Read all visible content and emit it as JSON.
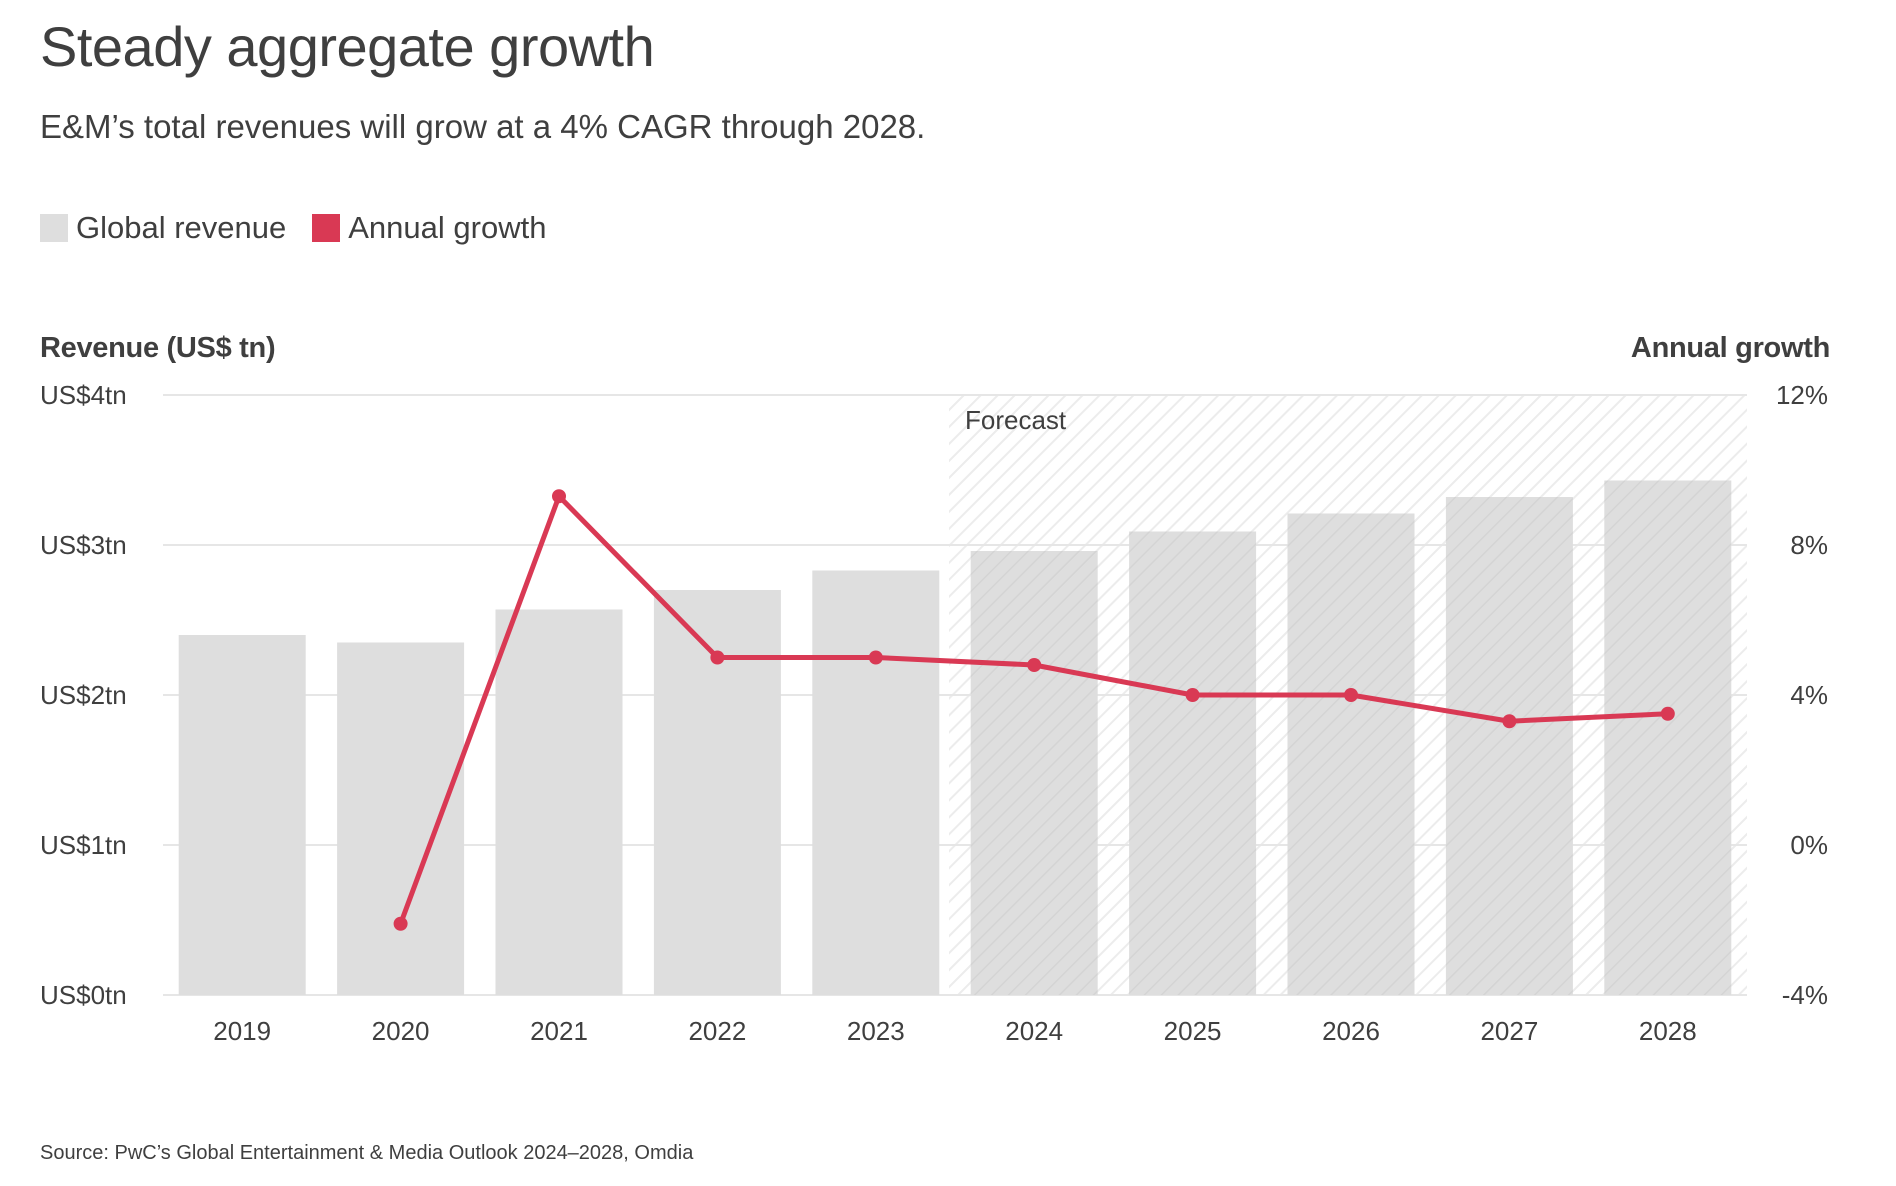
{
  "title": "Steady aggregate growth",
  "subtitle": "E&M’s total revenues will grow at a 4% CAGR through 2028.",
  "legend": {
    "revenue_label": "Global revenue",
    "growth_label": "Annual growth"
  },
  "axis": {
    "left_title": "Revenue (US$ tn)",
    "right_title": "Annual growth"
  },
  "forecast_label": "Forecast",
  "source": "Source: PwC’s Global Entertainment & Media Outlook 2024–2028, Omdia",
  "colors": {
    "bar": "#dedede",
    "line": "#d93954",
    "grid": "#e6e6e6",
    "text": "#3f3f3f"
  },
  "chart_data": {
    "type": "bar",
    "categories": [
      "2019",
      "2020",
      "2021",
      "2022",
      "2023",
      "2024",
      "2025",
      "2026",
      "2027",
      "2028"
    ],
    "series": [
      {
        "name": "Global revenue",
        "type": "bar",
        "axis": "left",
        "values": [
          2.4,
          2.35,
          2.57,
          2.7,
          2.83,
          2.96,
          3.09,
          3.21,
          3.32,
          3.43
        ]
      },
      {
        "name": "Annual growth",
        "type": "line",
        "axis": "right",
        "values": [
          null,
          -2.1,
          9.3,
          5.0,
          5.0,
          4.8,
          4.0,
          4.0,
          3.3,
          3.5
        ]
      }
    ],
    "forecast_start": "2024",
    "y_left": {
      "title": "Revenue (US$ tn)",
      "lim": [
        0,
        4
      ],
      "ticks": [
        0,
        1,
        2,
        3,
        4
      ],
      "tick_labels": [
        "US$0tn",
        "US$1tn",
        "US$2tn",
        "US$3tn",
        "US$4tn"
      ]
    },
    "y_right": {
      "title": "Annual growth",
      "lim": [
        -4,
        12
      ],
      "ticks": [
        -4,
        0,
        4,
        8,
        12
      ],
      "tick_labels": [
        "-4%",
        "0%",
        "4%",
        "8%",
        "12%"
      ]
    },
    "grid": true,
    "legend_position": "top-left"
  }
}
